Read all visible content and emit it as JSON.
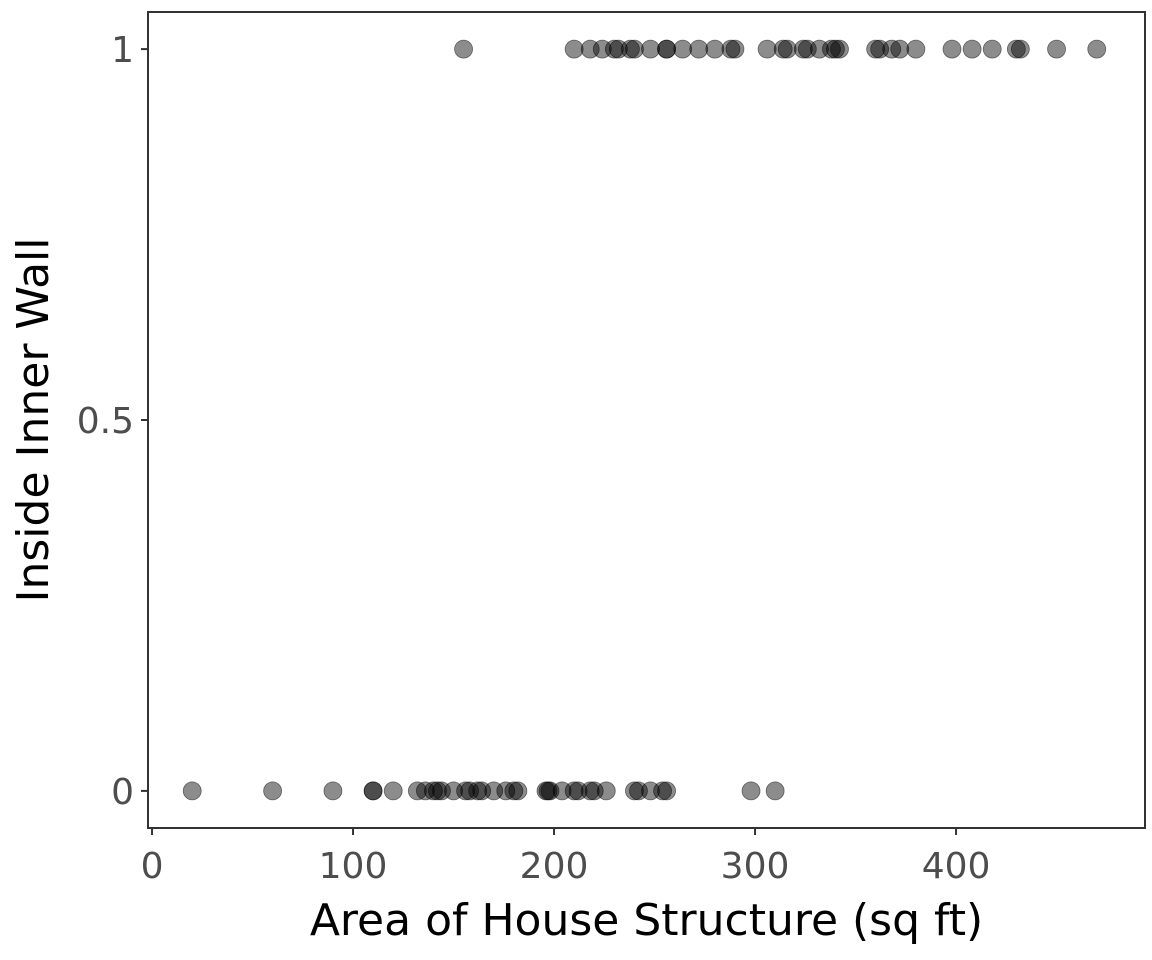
{
  "colors": {
    "point": "#000000",
    "panel_border": "#333333",
    "tick_label": "#4d4d4d",
    "background": "#ffffff"
  },
  "chart_data": {
    "type": "scatter",
    "title": "",
    "xlabel": "Area of House Structure (sq ft)",
    "ylabel": "Inside Inner Wall",
    "xlim": [
      -2,
      494
    ],
    "ylim": [
      -0.05,
      1.05
    ],
    "x_ticks": [
      0,
      100,
      200,
      300,
      400
    ],
    "x_tick_labels": [
      "0",
      "100",
      "200",
      "300",
      "400"
    ],
    "y_ticks": [
      0,
      0.5,
      1
    ],
    "y_tick_labels": [
      "0",
      "0.5",
      "1"
    ],
    "grid": false,
    "legend": "none",
    "series": [
      {
        "x": [
          155,
          210,
          218,
          224,
          230,
          232,
          238,
          240,
          248,
          256,
          256,
          264,
          272,
          280,
          288,
          290,
          306,
          314,
          316,
          324,
          326,
          332,
          338,
          340,
          342,
          360,
          362,
          368,
          372,
          380,
          398,
          408,
          418,
          430,
          432,
          450,
          470
        ],
        "y": [
          1,
          1,
          1,
          1,
          1,
          1,
          1,
          1,
          1,
          1,
          1,
          1,
          1,
          1,
          1,
          1,
          1,
          1,
          1,
          1,
          1,
          1,
          1,
          1,
          1,
          1,
          1,
          1,
          1,
          1,
          1,
          1,
          1,
          1,
          1,
          1,
          1
        ]
      },
      {
        "x": [
          20,
          60,
          90,
          110,
          110,
          120,
          132,
          136,
          140,
          142,
          144,
          150,
          156,
          158,
          162,
          164,
          170,
          176,
          180,
          182,
          196,
          197,
          198,
          204,
          210,
          212,
          218,
          220,
          226,
          240,
          242,
          248,
          254,
          256,
          298,
          310
        ],
        "y": [
          0,
          0,
          0,
          0,
          0,
          0,
          0,
          0,
          0,
          0,
          0,
          0,
          0,
          0,
          0,
          0,
          0,
          0,
          0,
          0,
          0,
          0,
          0,
          0,
          0,
          0,
          0,
          0,
          0,
          0,
          0,
          0,
          0,
          0,
          0,
          0
        ]
      }
    ]
  }
}
